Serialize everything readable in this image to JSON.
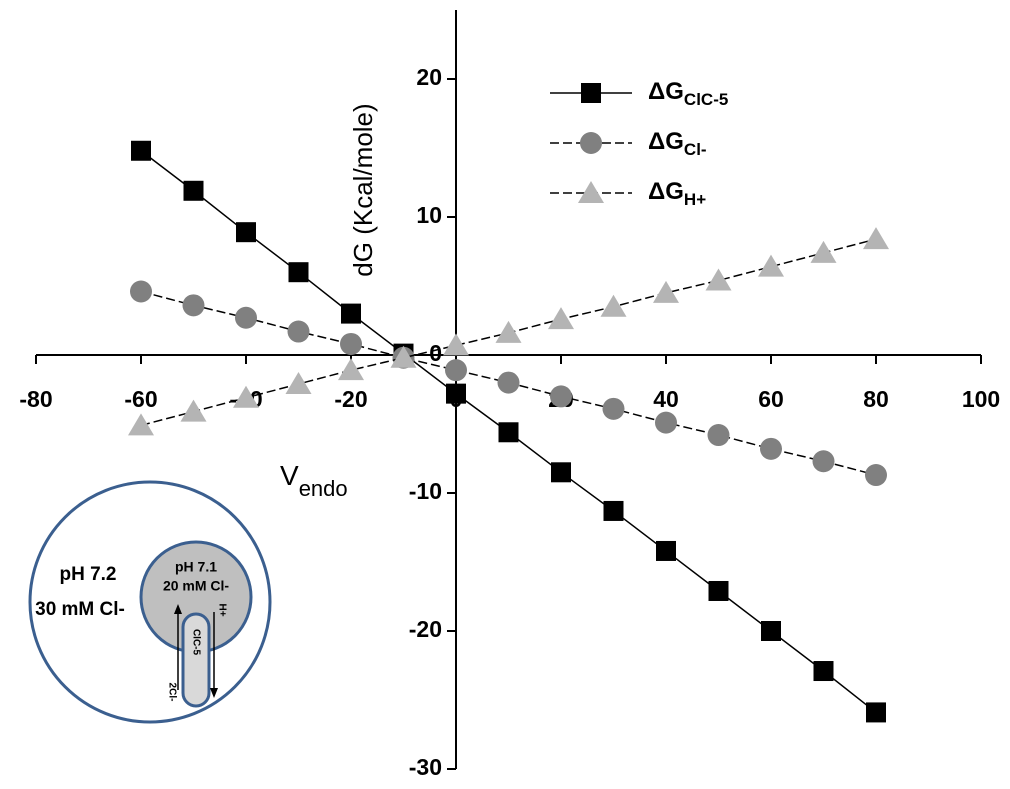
{
  "chart_data": {
    "type": "line",
    "x_label": "V",
    "x_label_sub": "endo",
    "y_label": "dG (Kcal/mole)",
    "legend_prefix": "ΔG",
    "x": [
      -60,
      -50,
      -40,
      -30,
      -20,
      -10,
      0,
      10,
      20,
      30,
      40,
      50,
      60,
      70,
      80
    ],
    "series": [
      {
        "name": "ClC-5",
        "color": "#000000",
        "marker": "square",
        "values": [
          14.8,
          11.9,
          8.9,
          6.0,
          3.0,
          0.1,
          -2.8,
          -5.6,
          -8.5,
          -11.3,
          -14.2,
          -17.1,
          -20.0,
          -22.9,
          -25.9
        ]
      },
      {
        "name": "Cl-",
        "color": "#808080",
        "marker": "circle",
        "values": [
          4.6,
          3.6,
          2.7,
          1.7,
          0.8,
          -0.2,
          -1.1,
          -2.0,
          -3.0,
          -3.9,
          -4.9,
          -5.8,
          -6.8,
          -7.7,
          -8.7
        ]
      },
      {
        "name": "H+",
        "color": "#b4b4b4",
        "marker": "triangle",
        "values": [
          -5.1,
          -4.1,
          -3.1,
          -2.1,
          -1.1,
          -0.2,
          0.7,
          1.6,
          2.6,
          3.5,
          4.5,
          5.4,
          6.4,
          7.4,
          8.4
        ]
      }
    ],
    "xlim": [
      -80,
      100
    ],
    "xticks": [
      -80,
      -60,
      -40,
      -20,
      0,
      20,
      40,
      60,
      80,
      100
    ],
    "ylim": [
      -30,
      25
    ],
    "yticks": [
      -30,
      -20,
      -10,
      0,
      10,
      20
    ],
    "legend": "upper right",
    "grid": false
  },
  "inset": {
    "outer_ph": "pH 7.2",
    "outer_cl": "30 mM Cl-",
    "inner_ph": "pH 7.1",
    "inner_cl": "20 mM Cl-",
    "transporter": "ClC-5",
    "left_ion": "2Cl-",
    "right_ion": "H+"
  }
}
